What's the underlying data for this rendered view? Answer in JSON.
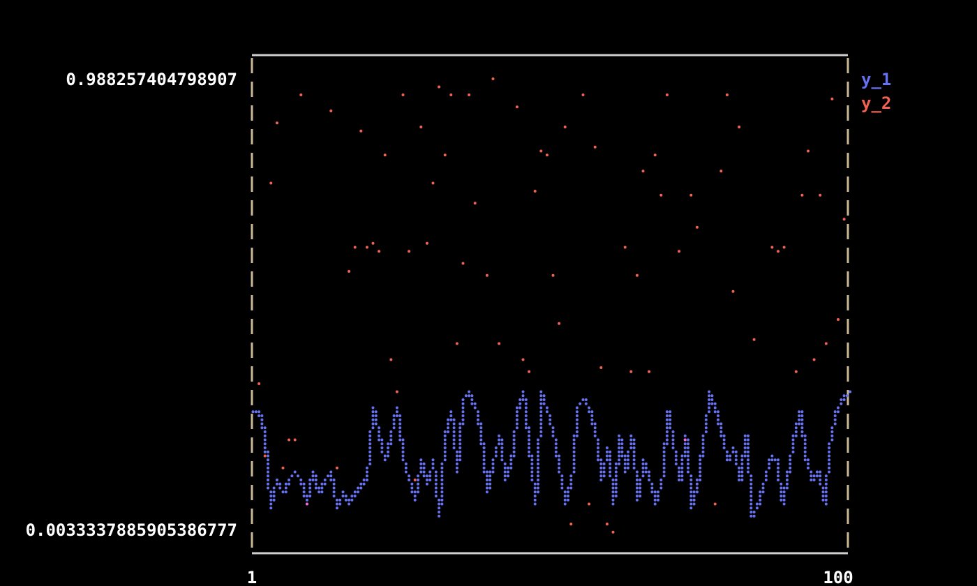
{
  "chart_data": {
    "type": "line",
    "title": "",
    "xlabel": "",
    "ylabel": "",
    "xlim": [
      1,
      100
    ],
    "ylim": [
      0.0033337885905386777,
      0.988257404798907
    ],
    "x_ticks": [
      "1",
      "100"
    ],
    "y_ticks": [
      "0.988257404798907",
      "0.0033337885905386777"
    ],
    "grid": false,
    "legend_placement": "top-right",
    "series": [
      {
        "name": "y_1",
        "color": "#6672f2",
        "style": "line",
        "x": [
          1,
          2,
          3,
          4,
          5,
          6,
          7,
          8,
          9,
          10,
          11,
          12,
          13,
          14,
          15,
          16,
          17,
          18,
          19,
          20,
          21,
          22,
          23,
          24,
          25,
          26,
          27,
          28,
          29,
          30,
          31,
          32,
          33,
          34,
          35,
          36,
          37,
          38,
          39,
          40,
          41,
          42,
          43,
          44,
          45,
          46,
          47,
          48,
          49,
          50,
          51,
          52,
          53,
          54,
          55,
          56,
          57,
          58,
          59,
          60,
          61,
          62,
          63,
          64,
          65,
          66,
          67,
          68,
          69,
          70,
          71,
          72,
          73,
          74,
          75,
          76,
          77,
          78,
          79,
          80,
          81,
          82,
          83,
          84,
          85,
          86,
          87,
          88,
          89,
          90,
          91,
          92,
          93,
          94,
          95,
          96,
          97,
          98,
          99,
          100
        ],
        "y": [
          0.26,
          0.26,
          0.21,
          0.05,
          0.11,
          0.08,
          0.11,
          0.13,
          0.11,
          0.06,
          0.13,
          0.08,
          0.11,
          0.13,
          0.05,
          0.08,
          0.06,
          0.08,
          0.1,
          0.11,
          0.27,
          0.21,
          0.15,
          0.21,
          0.27,
          0.16,
          0.11,
          0.07,
          0.15,
          0.1,
          0.15,
          0.03,
          0.21,
          0.26,
          0.13,
          0.29,
          0.3,
          0.27,
          0.21,
          0.08,
          0.15,
          0.21,
          0.11,
          0.15,
          0.26,
          0.3,
          0.18,
          0.06,
          0.3,
          0.26,
          0.21,
          0.13,
          0.06,
          0.11,
          0.27,
          0.29,
          0.26,
          0.21,
          0.11,
          0.18,
          0.06,
          0.21,
          0.13,
          0.21,
          0.07,
          0.15,
          0.11,
          0.06,
          0.11,
          0.26,
          0.18,
          0.11,
          0.21,
          0.05,
          0.11,
          0.21,
          0.3,
          0.26,
          0.21,
          0.15,
          0.18,
          0.11,
          0.21,
          0.03,
          0.06,
          0.11,
          0.16,
          0.15,
          0.06,
          0.13,
          0.21,
          0.26,
          0.15,
          0.11,
          0.13,
          0.06,
          0.2,
          0.26,
          0.29,
          0.3
        ]
      },
      {
        "name": "y_2",
        "color": "#f26252",
        "style": "scatter",
        "x": [
          2,
          3,
          4,
          5,
          6,
          7,
          8,
          9,
          10,
          14,
          15,
          17,
          18,
          19,
          20,
          21,
          22,
          23,
          24,
          25,
          26,
          27,
          28,
          29,
          30,
          31,
          32,
          33,
          34,
          35,
          36,
          37,
          38,
          40,
          41,
          42,
          45,
          46,
          47,
          48,
          49,
          50,
          51,
          52,
          53,
          54,
          56,
          57,
          58,
          59,
          60,
          61,
          63,
          64,
          65,
          66,
          67,
          68,
          69,
          70,
          72,
          73,
          74,
          75,
          78,
          79,
          80,
          81,
          82,
          84,
          87,
          88,
          89,
          91,
          92,
          93,
          94,
          95,
          96,
          97,
          98,
          99
        ],
        "y": [
          0.32,
          0.16,
          0.76,
          0.89,
          0.14,
          0.2,
          0.2,
          0.95,
          0.06,
          0.92,
          0.14,
          0.57,
          0.62,
          0.87,
          0.62,
          0.63,
          0.61,
          0.82,
          0.37,
          0.3,
          0.95,
          0.61,
          0.11,
          0.88,
          0.63,
          0.76,
          0.97,
          0.82,
          0.95,
          0.41,
          0.58,
          0.95,
          0.72,
          0.56,
          0.988,
          0.41,
          0.93,
          0.37,
          0.35,
          0.74,
          0.83,
          0.82,
          0.56,
          0.45,
          0.88,
          0.01,
          0.95,
          0.06,
          0.84,
          0.36,
          0.01,
          0.0,
          0.62,
          0.35,
          0.56,
          0.79,
          0.35,
          0.82,
          0.73,
          0.95,
          0.61,
          0.2,
          0.73,
          0.66,
          0.06,
          0.79,
          0.95,
          0.52,
          0.88,
          0.42,
          0.62,
          0.61,
          0.62,
          0.35,
          0.73,
          0.83,
          0.37,
          0.73,
          0.41,
          0.94,
          0.46,
          0.68
        ]
      }
    ]
  }
}
